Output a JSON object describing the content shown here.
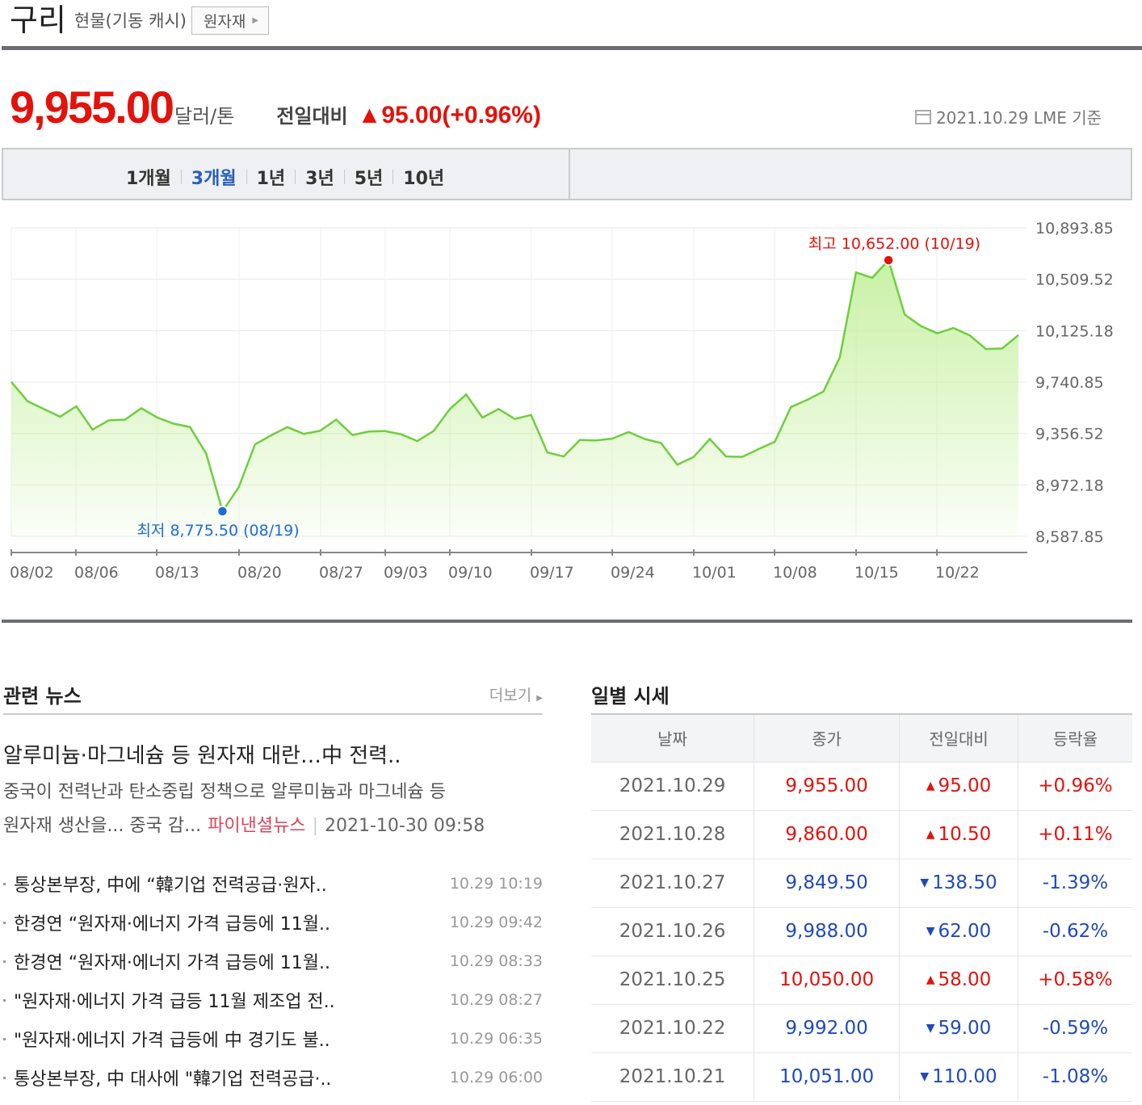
{
  "header": {
    "title": "구리",
    "subtitle": "현물(기동 캐시)",
    "category_button": "원자재"
  },
  "price": {
    "value": "9,955.00",
    "unit": "달러/톤",
    "change_label": "전일대비",
    "change_value": "▲95.00(+0.96%)",
    "basis": "2021.10.29 LME 기준"
  },
  "tabs": [
    "1개월",
    "3개월",
    "1년",
    "3년",
    "5년",
    "10년"
  ],
  "active_tab": "3개월",
  "chart_data": {
    "type": "area",
    "y_ticks": [
      "10,893.85",
      "10,509.52",
      "10,125.18",
      "9,740.85",
      "9,356.52",
      "8,972.18",
      "8,587.85"
    ],
    "ylim": [
      8587.85,
      10893.85
    ],
    "x_ticks": [
      "08/02",
      "08/06",
      "08/13",
      "08/20",
      "08/27",
      "09/03",
      "09/10",
      "09/17",
      "09/24",
      "10/01",
      "10/08",
      "10/15",
      "10/22"
    ],
    "values": [
      9742,
      9598,
      9540,
      9482,
      9560,
      9385,
      9455,
      9460,
      9545,
      9475,
      9430,
      9405,
      9205,
      8775.5,
      8955,
      9275,
      9343,
      9404,
      9353,
      9376,
      9460,
      9345,
      9371,
      9375,
      9350,
      9300,
      9375,
      9540,
      9648,
      9475,
      9540,
      9465,
      9495,
      9215,
      9185,
      9308,
      9305,
      9318,
      9368,
      9315,
      9285,
      9123,
      9180,
      9315,
      9185,
      9182,
      9240,
      9295,
      9555,
      9608,
      9670,
      9925,
      10560,
      10520,
      10652,
      10245,
      10160,
      10105,
      10145,
      10090,
      9988,
      9992,
      10092
    ],
    "max_label": "최고 10,652.00 (10/19)",
    "min_label": "최저 8,775.50 (08/19)",
    "line_color": "#6dcf3c",
    "fill_color": "#c9f1a5",
    "max_color": "#e3120b",
    "min_color": "#1f6bd6"
  },
  "news": {
    "title": "관련 뉴스",
    "more": "더보기",
    "top": {
      "headline": "알루미늄·마그네슘 등 원자재 대란…中 전력..",
      "summary_line1": "중국이 전력난과 탄소중립 정책으로 알루미늄과 마그네슘 등",
      "summary_line2": "원자재 생산을... 중국 감...",
      "source": "파이낸셜뉴스",
      "time": "2021-10-30 09:58"
    },
    "items": [
      {
        "title": "통상본부장, 中에 “韓기업 전력공급·원자..",
        "time": "10.29 10:19"
      },
      {
        "title": "한경연 “원자재·에너지 가격 급등에 11월..",
        "time": "10.29 09:42"
      },
      {
        "title": "한경연 “원자재·에너지 가격 급등에 11월..",
        "time": "10.29 08:33"
      },
      {
        "title": "\"원자재·에너지 가격 급등 11월 제조업 전..",
        "time": "10.29 08:27"
      },
      {
        "title": "\"원자재·에너지 가격 급등에 中 경기도 불..",
        "time": "10.29 06:35"
      },
      {
        "title": "통상본부장, 中 대사에 \"韓기업 전력공급·..",
        "time": "10.29 06:00"
      }
    ]
  },
  "daily": {
    "title": "일별 시세",
    "headers": [
      "날짜",
      "종가",
      "전일대비",
      "등락율"
    ],
    "rows": [
      {
        "date": "2021.10.29",
        "close": "9,955.00",
        "dir": "up",
        "arrow": "▲",
        "change": "95.00",
        "rate": "+0.96%"
      },
      {
        "date": "2021.10.28",
        "close": "9,860.00",
        "dir": "up",
        "arrow": "▲",
        "change": "10.50",
        "rate": "+0.11%"
      },
      {
        "date": "2021.10.27",
        "close": "9,849.50",
        "dir": "down",
        "arrow": "▼",
        "change": "138.50",
        "rate": "-1.39%"
      },
      {
        "date": "2021.10.26",
        "close": "9,988.00",
        "dir": "down",
        "arrow": "▼",
        "change": "62.00",
        "rate": "-0.62%"
      },
      {
        "date": "2021.10.25",
        "close": "10,050.00",
        "dir": "up",
        "arrow": "▲",
        "change": "58.00",
        "rate": "+0.58%"
      },
      {
        "date": "2021.10.22",
        "close": "9,992.00",
        "dir": "down",
        "arrow": "▼",
        "change": "59.00",
        "rate": "-0.59%"
      },
      {
        "date": "2021.10.21",
        "close": "10,051.00",
        "dir": "down",
        "arrow": "▼",
        "change": "110.00",
        "rate": "-1.08%"
      }
    ]
  }
}
